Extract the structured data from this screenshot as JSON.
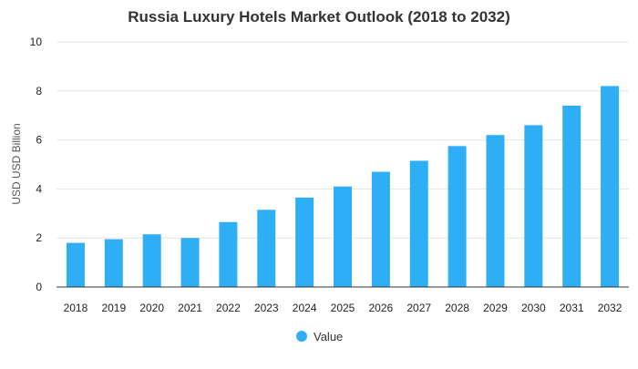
{
  "chart_data": {
    "type": "bar",
    "title": "Russia Luxury Hotels Market Outlook (2018 to 2032)",
    "xlabel": "",
    "ylabel": "USD USD Billion",
    "categories": [
      "2018",
      "2019",
      "2020",
      "2021",
      "2022",
      "2023",
      "2024",
      "2025",
      "2026",
      "2027",
      "2028",
      "2029",
      "2030",
      "2031",
      "2032"
    ],
    "series": [
      {
        "name": "Value",
        "values": [
          1.8,
          1.95,
          2.15,
          2.0,
          2.65,
          3.15,
          3.65,
          4.1,
          4.7,
          5.15,
          5.75,
          6.2,
          6.6,
          7.4,
          8.2
        ]
      }
    ],
    "ylim": [
      0,
      10
    ],
    "yticks": [
      0,
      2,
      4,
      6,
      8,
      10
    ],
    "grid": true,
    "legend": "bottom-center",
    "colors": {
      "bar": "#2eaef5",
      "grid": "#e6e6e6",
      "axis": "#333333"
    }
  }
}
